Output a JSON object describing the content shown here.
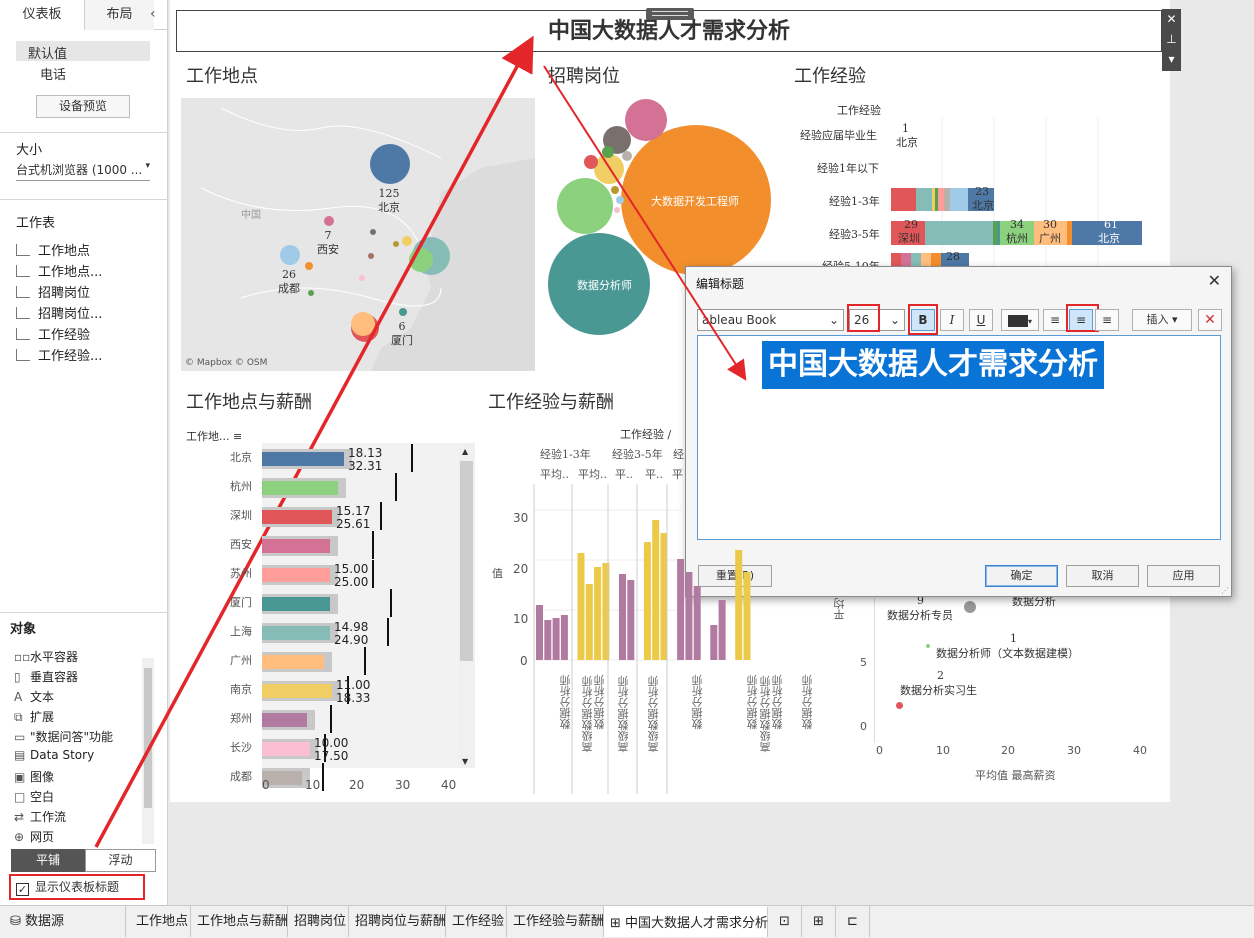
{
  "left_pane": {
    "tabs": [
      "仪表板",
      "布局"
    ],
    "collapse_icon": "chevron-left",
    "devices": [
      "默认值",
      "电话"
    ],
    "device_preview_button": "设备预览",
    "size_label": "大小",
    "size_value": "台式机浏览器 (1000 ...",
    "sheets_label": "工作表",
    "sheets": [
      "工作地点",
      "工作地点...",
      "招聘岗位",
      "招聘岗位...",
      "工作经验",
      "工作经验..."
    ],
    "objects_label": "对象",
    "objects": [
      {
        "icon": "horizontal-container",
        "label": "水平容器"
      },
      {
        "icon": "vertical-container",
        "label": "垂直容器"
      },
      {
        "icon": "text",
        "label": "文本"
      },
      {
        "icon": "extension",
        "label": "扩展"
      },
      {
        "icon": "ask-data",
        "label": "\"数据问答\"功能"
      },
      {
        "icon": "data-story",
        "label": "Data Story"
      },
      {
        "icon": "image",
        "label": "图像"
      },
      {
        "icon": "blank",
        "label": "空白"
      },
      {
        "icon": "workflow",
        "label": "工作流"
      },
      {
        "icon": "web",
        "label": "网页"
      }
    ],
    "layout_toggle": [
      "平铺",
      "浮动"
    ],
    "show_title_checkbox": {
      "label": "显示仪表板标题",
      "checked": true
    }
  },
  "dashboard": {
    "title": "中国大数据人才需求分析",
    "worksheet_titles": {
      "location": "工作地点",
      "positions": "招聘岗位",
      "experience": "工作经验",
      "location_salary": "工作地点与薪酬",
      "experience_salary": "工作经验与薪酬"
    },
    "map": {
      "attribution": "© Mapbox © OSM",
      "country_label": "中国",
      "labels": [
        {
          "value": "125",
          "city": "北京"
        },
        {
          "value": "7",
          "city": "西安"
        },
        {
          "value": "26",
          "city": "成都"
        },
        {
          "value": "6",
          "city": "厦门"
        }
      ]
    },
    "bubbles": {
      "big": "大数据开发工程师",
      "second": "数据分析师"
    },
    "experience": {
      "header": "工作经验",
      "rows": [
        "经验应届毕业生",
        "经验1年以下",
        "经验1-3年",
        "经验3-5年",
        "经验5-10年"
      ],
      "labels": [
        {
          "value": "1",
          "city": "北京"
        },
        {
          "value": "23",
          "city": "北京"
        },
        {
          "value": "29",
          "city": "深圳"
        },
        {
          "value": "34",
          "city": "杭州"
        },
        {
          "value": "30",
          "city": "广州"
        },
        {
          "value": "61",
          "city": "北京"
        },
        {
          "value": "28",
          "city": ""
        }
      ]
    },
    "location_salary": {
      "header": "工作地...",
      "cities": [
        "北京",
        "杭州",
        "深圳",
        "西安",
        "苏州",
        "厦门",
        "上海",
        "广州",
        "南京",
        "郑州",
        "长沙",
        "成都"
      ],
      "values": [
        {
          "a": "18.13",
          "b": "32.31"
        },
        {
          "a": "",
          "b": ""
        },
        {
          "a": "15.17",
          "b": "25.61"
        },
        {
          "a": "",
          "b": ""
        },
        {
          "a": "15.00",
          "b": "25.00"
        },
        {
          "a": "",
          "b": ""
        },
        {
          "a": "14.98",
          "b": "24.90"
        },
        {
          "a": "",
          "b": ""
        },
        {
          "a": "11.00",
          "b": "18.33"
        },
        {
          "a": "",
          "b": ""
        },
        {
          "a": "10.00",
          "b": "17.50"
        },
        {
          "a": "",
          "b": ""
        }
      ],
      "x_ticks": [
        "0",
        "10",
        "20",
        "30",
        "40"
      ]
    },
    "experience_salary": {
      "header": "工作经验",
      "col_groups": [
        "经验1-3年",
        "经验3-5年",
        "经"
      ],
      "sub_headers": [
        "平均..",
        "平均..",
        "平..",
        "平..",
        "平"
      ],
      "y_axis_label": "值",
      "y_ticks": [
        "30",
        "20",
        "10",
        "0"
      ],
      "x_labels": [
        "数据分析师",
        "高级数据分析师",
        "数据分析师",
        "高级数据分析师",
        "高级数据分析师",
        "数据分析师",
        "数据分析师",
        "高级数据分析师",
        "数据分析师",
        "数据分析师"
      ]
    },
    "scatter": {
      "x_label": "平均值 最高薪资",
      "y_label": "平均",
      "x_ticks": [
        "0",
        "10",
        "20",
        "30",
        "40"
      ],
      "y_ticks": [
        "5",
        "0"
      ],
      "labels": [
        {
          "value": "9",
          "name": "数据分析专员"
        },
        {
          "value": "",
          "name": "数据分析"
        },
        {
          "value": "1",
          "name": "数据分析师（文本数据建模）"
        },
        {
          "value": "2",
          "name": "数据分析实习生"
        }
      ]
    }
  },
  "dialog": {
    "title": "编辑标题",
    "font": "Tableau Book",
    "font_display": "ableau Book",
    "size": "26",
    "bold": "B",
    "italic": "I",
    "underline": "U",
    "insert_button": "插入",
    "selected_text": "中国大数据人才需求分析",
    "reset_button": "重置(R)",
    "ok_button": "确定",
    "cancel_button": "取消",
    "apply_button": "应用"
  },
  "bottom_tabs": {
    "datasource": "数据源",
    "tabs": [
      "工作地点",
      "工作地点与薪酬",
      "招聘岗位",
      "招聘岗位与薪酬",
      "工作经验",
      "工作经验与薪酬",
      "中国大数据人才需求分析"
    ]
  },
  "colors": {
    "accent_red": "#e3262a",
    "selection_blue": "#0a73d6",
    "tableau_blue": "#4e79a7",
    "tableau_orange": "#f28e2b",
    "tableau_teal": "#499894"
  }
}
